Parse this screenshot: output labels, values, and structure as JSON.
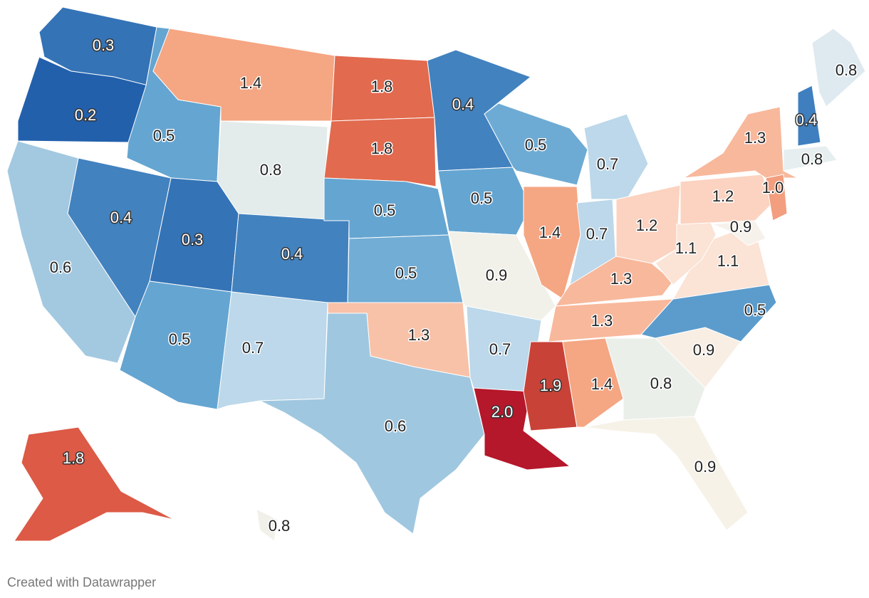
{
  "chart_data": {
    "type": "choropleth",
    "values": [
      0.3,
      0.2,
      0.6,
      0.4,
      0.5,
      1.4,
      0.8,
      0.3,
      0.5,
      0.4,
      0.7,
      1.8,
      1.8,
      0.5,
      0.5,
      1.3,
      0.6,
      0.4,
      0.5,
      0.9,
      0.7,
      2.0,
      0.5,
      1.4,
      0.7,
      0.7,
      1.2,
      1.3,
      1.3,
      1.9,
      1.4,
      0.8,
      0.9,
      0.9,
      0.5,
      1.1,
      1.1,
      1.2,
      1.3,
      0.9,
      1.0,
      0.8,
      0.4,
      0.8,
      1.8,
      0.8
    ],
    "value_labels": [
      "0.3",
      "0.2",
      "0.6",
      "0.4",
      "0.5",
      "1.4",
      "0.8",
      "0.3",
      "0.5",
      "0.4",
      "0.7",
      "1.8",
      "1.8",
      "0.5",
      "0.5",
      "1.3",
      "0.6",
      "0.4",
      "0.5",
      "0.9",
      "0.7",
      "2.0",
      "0.5",
      "1.4",
      "0.7",
      "0.7",
      "1.2",
      "1.3",
      "1.3",
      "1.9",
      "1.4",
      "0.8",
      "0.9",
      "0.9",
      "0.5",
      "1.1",
      "1.1",
      "1.2",
      "1.3",
      "0.9",
      "1.0",
      "0.8",
      "0.4",
      "0.8",
      "1.8",
      "0.8"
    ],
    "colors": [
      "#3473b6",
      "#2260ac",
      "#a3c9e1",
      "#4282bf",
      "#65a5d1",
      "#f5a683",
      "#e3ebeb",
      "#3473b6",
      "#65a5d1",
      "#4282bf",
      "#bcd8ea",
      "#e26a4e",
      "#e26a4e",
      "#65a5d1",
      "#72add5",
      "#f8c2a8",
      "#9fc7e0",
      "#4282bf",
      "#65a5d1",
      "#f1f1ea",
      "#bcd8ea",
      "#b5172b",
      "#6eabd4",
      "#f5a683",
      "#bcd8ea",
      "#bcd8ea",
      "#fbd3c0",
      "#f8b89c",
      "#f8b89c",
      "#c94237",
      "#f5a683",
      "#ebefea",
      "#f6f2e8",
      "#f8eee4",
      "#5b9ccd",
      "#fbe3d6",
      "#fbe3d6",
      "#fbd3c0",
      "#f8b89c",
      "#f6f1ea",
      "#f39e7e",
      "#e6eef0",
      "#3f7fbf",
      "#dfeaf0",
      "#dc5a46",
      "#f1f1ea"
    ],
    "credit": "Created with Datawrapper"
  }
}
